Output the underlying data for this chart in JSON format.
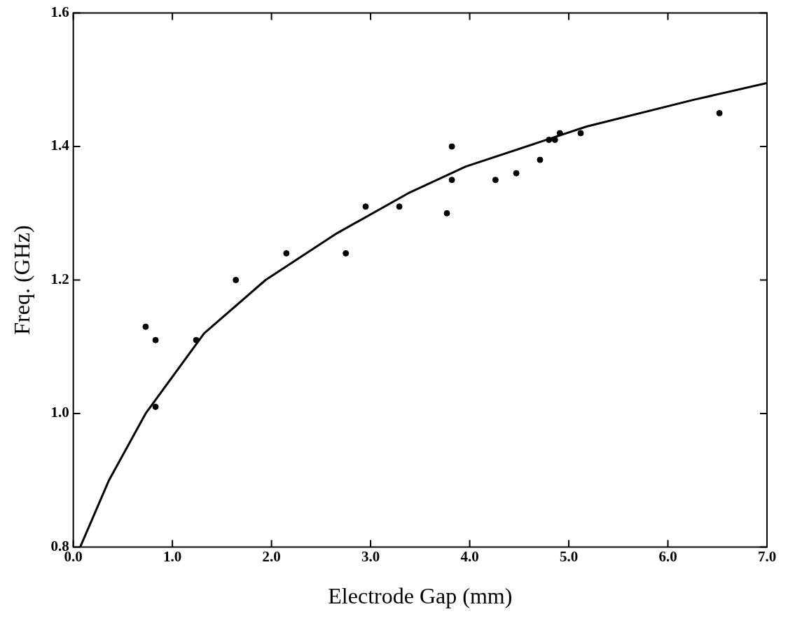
{
  "chart_data": {
    "type": "scatter",
    "xlabel": "Electrode Gap (mm)",
    "ylabel": "Freq. (GHz)",
    "xlim": [
      0,
      7
    ],
    "ylim": [
      0.8,
      1.6
    ],
    "xticks": [
      {
        "value": 0,
        "label": "0.0"
      },
      {
        "value": 1,
        "label": "1.0"
      },
      {
        "value": 2,
        "label": "2.0"
      },
      {
        "value": 3,
        "label": "3.0"
      },
      {
        "value": 4,
        "label": "4.0"
      },
      {
        "value": 5,
        "label": "5.0"
      },
      {
        "value": 6,
        "label": "6.0"
      },
      {
        "value": 7,
        "label": "7.0"
      }
    ],
    "yticks": [
      0.8,
      {
        "value": 1,
        "label": "1.0"
      },
      1.2,
      1.4,
      1.6
    ],
    "grid": false,
    "legend": false,
    "series": [
      {
        "marker": "circle",
        "color": "#000000",
        "x": [
          0.73,
          0.83,
          0.83,
          1.24,
          1.64,
          2.15,
          2.75,
          2.95,
          3.29,
          3.77,
          3.82,
          3.82,
          4.26,
          4.47,
          4.71,
          4.8,
          4.86,
          4.91,
          5.12,
          6.52
        ],
        "values": [
          1.13,
          1.11,
          1.01,
          1.11,
          1.2,
          1.24,
          1.24,
          1.31,
          1.31,
          1.3,
          1.35,
          1.4,
          1.35,
          1.36,
          1.38,
          1.41,
          1.41,
          1.42,
          1.42,
          1.45
        ]
      },
      {
        "type": "line",
        "marker": "none",
        "color": "#000000",
        "x": [
          0.07,
          0.36,
          0.73,
          1.32,
          1.94,
          2.66,
          3.38,
          3.96,
          5.18,
          6.26,
          7.0
        ],
        "values": [
          0.8,
          0.9,
          1.0,
          1.12,
          1.2,
          1.27,
          1.33,
          1.37,
          1.43,
          1.47,
          1.495
        ]
      }
    ]
  }
}
